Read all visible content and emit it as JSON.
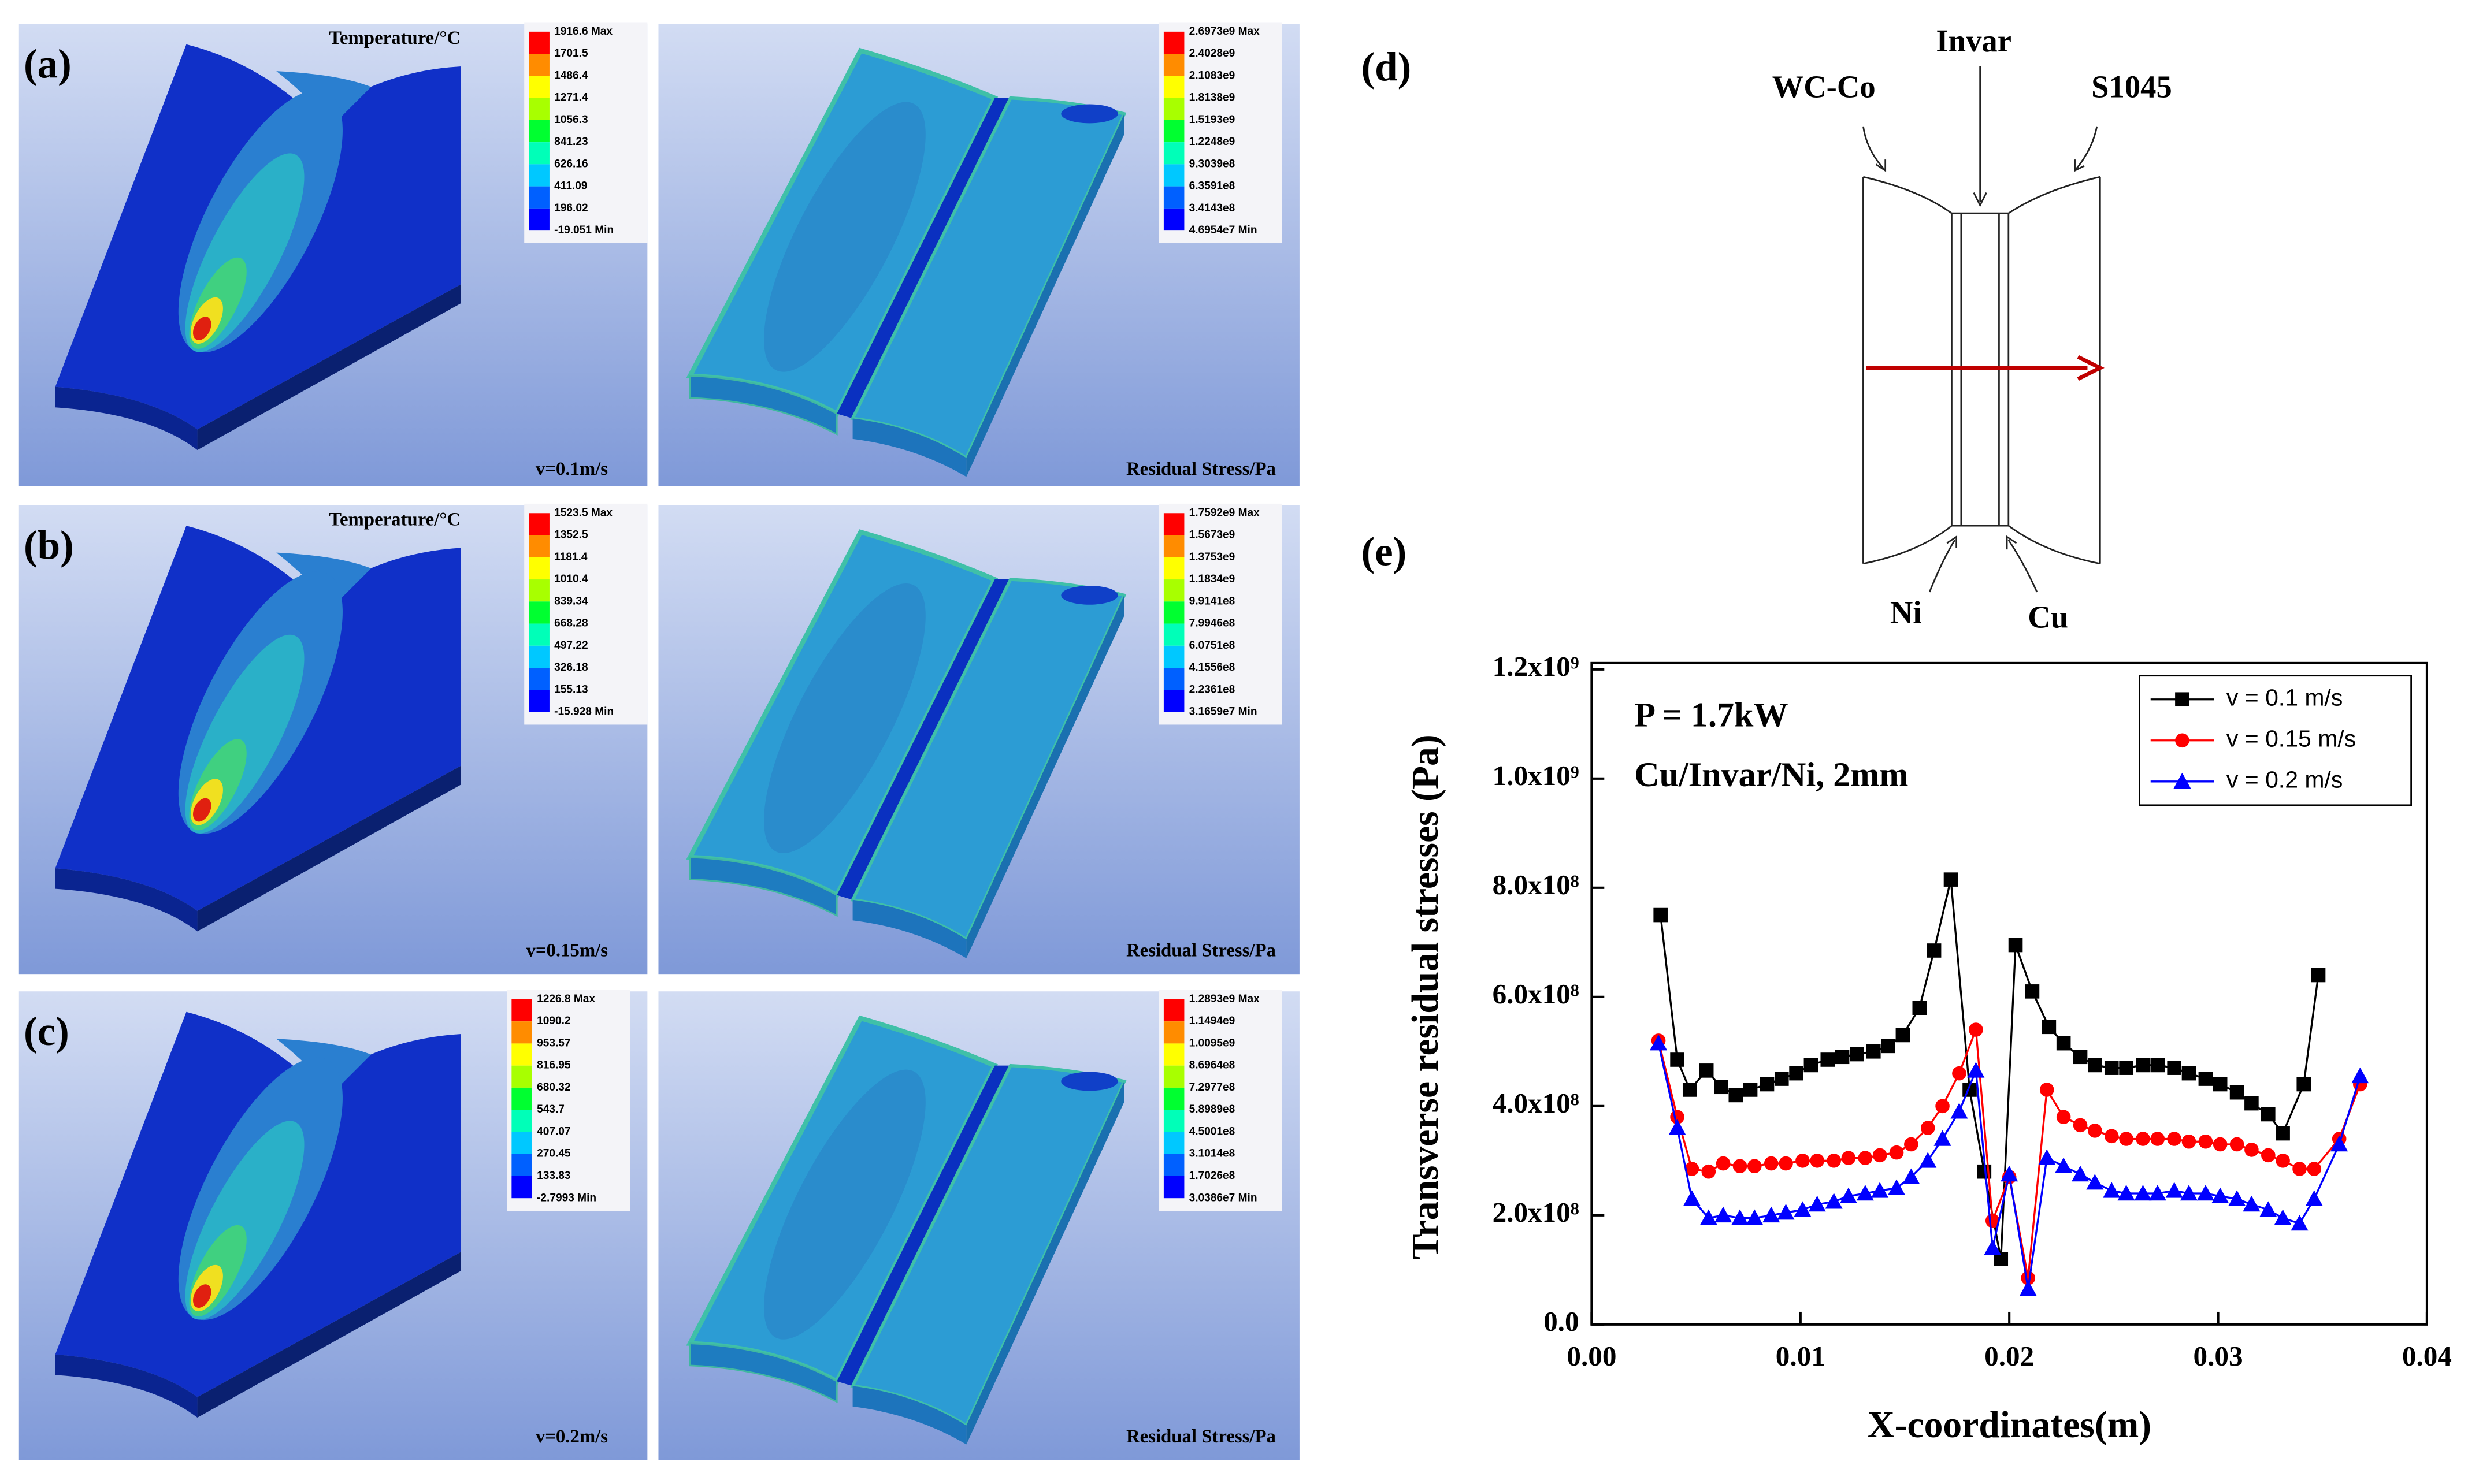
{
  "panels": [
    {
      "label": "(a)",
      "speed": "v=0.1m/s",
      "temperature": {
        "title": "Temperature/°C",
        "scale": [
          "1916.6 Max",
          "1701.5",
          "1486.4",
          "1271.4",
          "1056.3",
          "841.23",
          "626.16",
          "411.09",
          "196.02",
          "-19.051 Min"
        ]
      },
      "stress": {
        "title": "Residual Stress/Pa",
        "scale": [
          "2.6973e9 Max",
          "2.4028e9",
          "2.1083e9",
          "1.8138e9",
          "1.5193e9",
          "1.2248e9",
          "9.3039e8",
          "6.3591e8",
          "3.4143e8",
          "4.6954e7 Min"
        ]
      }
    },
    {
      "label": "(b)",
      "speed": "v=0.15m/s",
      "temperature": {
        "title": "Temperature/°C",
        "scale": [
          "1523.5 Max",
          "1352.5",
          "1181.4",
          "1010.4",
          "839.34",
          "668.28",
          "497.22",
          "326.18",
          "155.13",
          "-15.928 Min"
        ]
      },
      "stress": {
        "title": "Residual Stress/Pa",
        "scale": [
          "1.7592e9 Max",
          "1.5673e9",
          "1.3753e9",
          "1.1834e9",
          "9.9141e8",
          "7.9946e8",
          "6.0751e8",
          "4.1556e8",
          "2.2361e8",
          "3.1659e7 Min"
        ]
      }
    },
    {
      "label": "(c)",
      "speed": "v=0.2m/s",
      "temperature": {
        "scale": [
          "1226.8 Max",
          "1090.2",
          "953.57",
          "816.95",
          "680.32",
          "543.7",
          "407.07",
          "270.45",
          "133.83",
          "-2.7993 Min"
        ]
      },
      "stress": {
        "title": "Residual Stress/Pa",
        "scale": [
          "1.2893e9 Max",
          "1.1494e9",
          "1.0095e9",
          "8.6964e8",
          "7.2977e8",
          "5.8989e8",
          "4.5001e8",
          "3.1014e8",
          "1.7026e8",
          "3.0386e7 Min"
        ]
      }
    }
  ],
  "diagram": {
    "label": "(d)",
    "top": [
      "WC-Co",
      "Invar",
      "S1045"
    ],
    "bottom": [
      "Ni",
      "Cu"
    ]
  },
  "chart_data": {
    "type": "line",
    "label": "(e)",
    "xlabel": "X-coordinates(m)",
    "ylabel": "Transverse residual stresses (Pa)",
    "annotations": [
      "P = 1.7kW",
      "Cu/Invar/Ni, 2mm"
    ],
    "xlim": [
      0,
      0.04
    ],
    "xticks": [
      {
        "value": 0,
        "label": "0.00"
      },
      {
        "value": 0.01,
        "label": "0.01"
      },
      {
        "value": 0.02,
        "label": "0.02"
      },
      {
        "value": 0.03,
        "label": "0.03"
      },
      {
        "value": 0.04,
        "label": "0.04"
      }
    ],
    "ylim": [
      0,
      1200000000.0
    ],
    "yticks": [
      {
        "value": 0,
        "label": "0.0"
      },
      {
        "value": 200000000.0,
        "label": "2.0x10⁸"
      },
      {
        "value": 400000000.0,
        "label": "4.0x10⁸"
      },
      {
        "value": 600000000.0,
        "label": "6.0x10⁸"
      },
      {
        "value": 800000000.0,
        "label": "8.0x10⁸"
      },
      {
        "value": 1000000000.0,
        "label": "1.0x10⁹"
      },
      {
        "value": 1200000000.0,
        "label": "1.2x10⁹"
      }
    ],
    "legend": "upper right",
    "series": [
      {
        "name": "v = 0.1 m/s",
        "color": "#000000",
        "marker": "square",
        "x": [
          0.0033,
          0.0041,
          0.0047,
          0.0055,
          0.0062,
          0.0069,
          0.0076,
          0.0084,
          0.0091,
          0.0098,
          0.0105,
          0.0113,
          0.012,
          0.0127,
          0.0135,
          0.0142,
          0.0149,
          0.0157,
          0.0164,
          0.0172,
          0.0181,
          0.0188,
          0.0196,
          0.0203,
          0.0211,
          0.0219,
          0.0226,
          0.0234,
          0.0241,
          0.0249,
          0.0256,
          0.0264,
          0.0271,
          0.0279,
          0.0286,
          0.0294,
          0.0301,
          0.0309,
          0.0316,
          0.0324,
          0.0331,
          0.0341,
          0.0348
        ],
        "values": [
          750000000.0,
          485000000.0,
          430000000.0,
          465000000.0,
          435000000.0,
          420000000.0,
          430000000.0,
          440000000.0,
          450000000.0,
          460000000.0,
          475000000.0,
          485000000.0,
          490000000.0,
          495000000.0,
          500000000.0,
          510000000.0,
          530000000.0,
          580000000.0,
          685000000.0,
          815000000.0,
          430000000.0,
          280000000.0,
          120000000.0,
          695000000.0,
          610000000.0,
          545000000.0,
          515000000.0,
          490000000.0,
          475000000.0,
          470000000.0,
          470000000.0,
          475000000.0,
          475000000.0,
          470000000.0,
          460000000.0,
          450000000.0,
          440000000.0,
          425000000.0,
          405000000.0,
          385000000.0,
          350000000.0,
          440000000.0,
          640000000.0
        ]
      },
      {
        "name": "v = 0.15 m/s",
        "color": "#ff0000",
        "marker": "circle",
        "x": [
          0.0032,
          0.0041,
          0.0048,
          0.0056,
          0.0063,
          0.0071,
          0.0078,
          0.0086,
          0.0093,
          0.0101,
          0.0108,
          0.0116,
          0.0123,
          0.0131,
          0.0138,
          0.0146,
          0.0153,
          0.0161,
          0.0168,
          0.0176,
          0.0184,
          0.0192,
          0.02,
          0.0209,
          0.0218,
          0.0226,
          0.0234,
          0.0241,
          0.0249,
          0.0256,
          0.0264,
          0.0271,
          0.0279,
          0.0286,
          0.0294,
          0.0301,
          0.0309,
          0.0316,
          0.0324,
          0.0331,
          0.0339,
          0.0346,
          0.0358,
          0.0368
        ],
        "values": [
          520000000.0,
          380000000.0,
          285000000.0,
          280000000.0,
          295000000.0,
          290000000.0,
          290000000.0,
          295000000.0,
          295000000.0,
          300000000.0,
          300000000.0,
          300000000.0,
          305000000.0,
          305000000.0,
          310000000.0,
          315000000.0,
          330000000.0,
          360000000.0,
          400000000.0,
          460000000.0,
          540000000.0,
          190000000.0,
          270000000.0,
          85000000.0,
          430000000.0,
          380000000.0,
          365000000.0,
          355000000.0,
          345000000.0,
          340000000.0,
          340000000.0,
          340000000.0,
          340000000.0,
          335000000.0,
          335000000.0,
          330000000.0,
          330000000.0,
          320000000.0,
          310000000.0,
          300000000.0,
          285000000.0,
          285000000.0,
          340000000.0,
          440000000.0
        ]
      },
      {
        "name": "v = 0.2 m/s",
        "color": "#0000ff",
        "marker": "triangle",
        "x": [
          0.0032,
          0.0041,
          0.0048,
          0.0056,
          0.0063,
          0.0071,
          0.0078,
          0.0086,
          0.0093,
          0.0101,
          0.0108,
          0.0116,
          0.0123,
          0.0131,
          0.0138,
          0.0146,
          0.0153,
          0.0161,
          0.0168,
          0.0176,
          0.0184,
          0.0192,
          0.02,
          0.0209,
          0.0218,
          0.0226,
          0.0234,
          0.0241,
          0.0249,
          0.0256,
          0.0264,
          0.0271,
          0.0279,
          0.0286,
          0.0294,
          0.0301,
          0.0309,
          0.0316,
          0.0324,
          0.0331,
          0.0339,
          0.0346,
          0.0358,
          0.0368
        ],
        "values": [
          515000000.0,
          360000000.0,
          230000000.0,
          195000000.0,
          200000000.0,
          195000000.0,
          195000000.0,
          200000000.0,
          205000000.0,
          210000000.0,
          220000000.0,
          225000000.0,
          235000000.0,
          240000000.0,
          245000000.0,
          250000000.0,
          270000000.0,
          300000000.0,
          340000000.0,
          390000000.0,
          465000000.0,
          140000000.0,
          275000000.0,
          65000000.0,
          305000000.0,
          290000000.0,
          275000000.0,
          260000000.0,
          245000000.0,
          240000000.0,
          240000000.0,
          240000000.0,
          245000000.0,
          240000000.0,
          240000000.0,
          235000000.0,
          230000000.0,
          220000000.0,
          210000000.0,
          195000000.0,
          185000000.0,
          230000000.0,
          330000000.0,
          455000000.0
        ]
      }
    ]
  }
}
